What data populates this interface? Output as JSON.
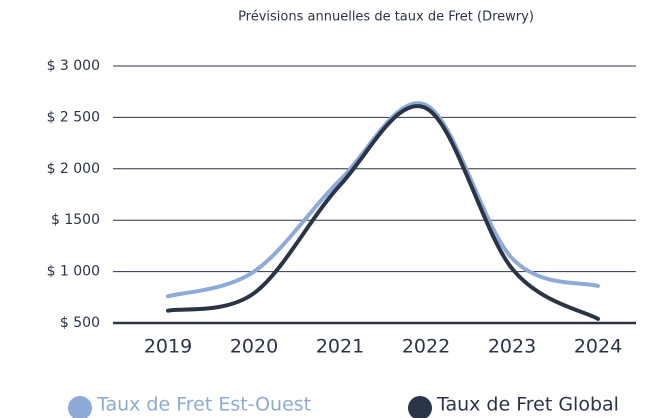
{
  "chart_data": {
    "type": "line",
    "title": "Prévisions annuelles de taux de Fret (Drewry)",
    "categories": [
      "2019",
      "2020",
      "2021",
      "2022",
      "2023",
      "2024"
    ],
    "series": [
      {
        "name": "Taux de Fret Est-Ouest",
        "color": "#8eaad6",
        "values": [
          760,
          1000,
          1890,
          2620,
          1130,
          860
        ]
      },
      {
        "name": "Taux de Fret Global",
        "color": "#2b3447",
        "values": [
          620,
          790,
          1840,
          2590,
          1030,
          540
        ]
      }
    ],
    "ylim": [
      500,
      3000
    ],
    "yticks": [
      {
        "value": 500,
        "label": "$ 500"
      },
      {
        "value": 1000,
        "label": "$ 1 000"
      },
      {
        "value": 1500,
        "label": "$ 1500"
      },
      {
        "value": 2000,
        "label": "$ 2 000"
      },
      {
        "value": 2500,
        "label": "$ 2 500"
      },
      {
        "value": 3000,
        "label": "$ 3 000"
      }
    ],
    "grid": true
  }
}
